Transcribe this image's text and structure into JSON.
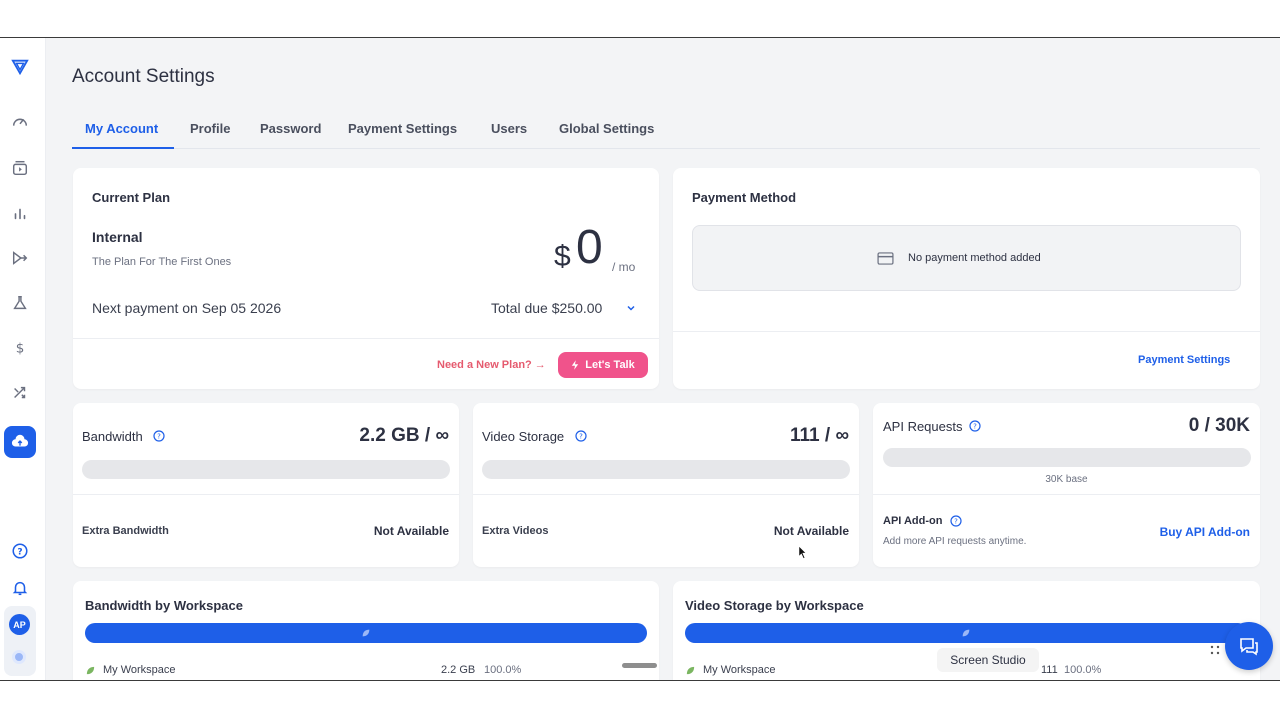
{
  "page": {
    "title": "Account Settings"
  },
  "tabs": [
    {
      "label": "My Account",
      "active": true
    },
    {
      "label": "Profile"
    },
    {
      "label": "Password"
    },
    {
      "label": "Payment Settings"
    },
    {
      "label": "Users"
    },
    {
      "label": "Global Settings"
    }
  ],
  "sidebar": {
    "icons": [
      "logo-icon",
      "dashboard-icon",
      "video-library-icon",
      "analytics-icon",
      "funnel-icon",
      "lab-icon",
      "dollar-icon",
      "shuffle-icon",
      "cloud-upload-icon",
      "help-icon",
      "bell-icon"
    ],
    "avatar": "AP"
  },
  "current_plan": {
    "title": "Current Plan",
    "plan_name": "Internal",
    "plan_desc": "The Plan For The First Ones",
    "currency": "$",
    "price": "0",
    "period": "/ mo",
    "next_payment": "Next payment on Sep 05 2026",
    "total_due": "Total due $250.00",
    "need_plan": "Need a New Plan? →",
    "talk_button": "Let's Talk"
  },
  "payment_method": {
    "title": "Payment Method",
    "empty_text": "No payment method added",
    "settings_link": "Payment Settings"
  },
  "bandwidth": {
    "title": "Bandwidth",
    "value": "2.2 GB / ∞",
    "extra_label": "Extra Bandwidth",
    "extra_value": "Not Available"
  },
  "video_storage": {
    "title": "Video Storage",
    "value": "111 / ∞",
    "extra_label": "Extra Videos",
    "extra_value": "Not Available"
  },
  "api_requests": {
    "title": "API Requests",
    "value": "0 / 30K",
    "base_label": "30K base",
    "addon_title": "API Add-on",
    "addon_desc": "Add more API requests anytime.",
    "addon_link": "Buy API Add-on"
  },
  "bandwidth_by_workspace": {
    "title": "Bandwidth by Workspace",
    "workspace": "My Workspace",
    "amount": "2.2 GB",
    "percent": "100.0%",
    "fill": 1.0
  },
  "storage_by_workspace": {
    "title": "Video Storage by Workspace",
    "workspace": "My Workspace",
    "amount": "111",
    "percent": "100.0%",
    "fill": 1.0
  },
  "overlay": {
    "tooltip": "Screen Studio"
  },
  "colors": {
    "accent": "#1e5fe8",
    "pink": "#f0538b"
  }
}
